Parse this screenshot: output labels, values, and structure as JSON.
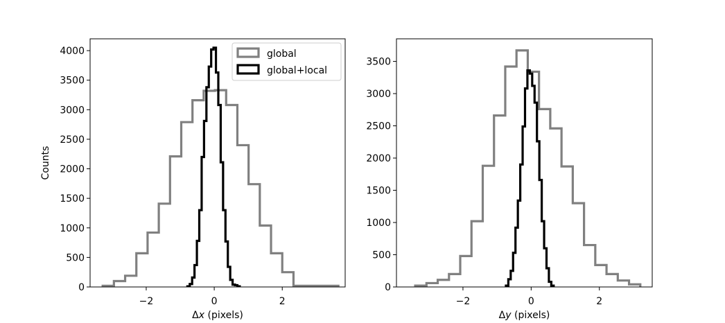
{
  "chart_data": [
    {
      "type": "histogram",
      "xlabel_prefix": "Δ",
      "xlabel_var": "x",
      "xlabel_suffix": " (pixels)",
      "ylabel": "Counts",
      "xlim": [
        -3.65,
        3.85
      ],
      "ylim": [
        0,
        4200
      ],
      "xticks": [
        -2,
        0,
        2
      ],
      "xtick_labels": [
        "−2",
        "0",
        "2"
      ],
      "yticks": [
        0,
        500,
        1000,
        1500,
        2000,
        2500,
        3000,
        3500,
        4000
      ],
      "ytick_labels": [
        "0",
        "500",
        "1000",
        "1500",
        "2000",
        "2500",
        "3000",
        "3500",
        "4000"
      ],
      "legend": {
        "position": "upper-right",
        "entries": [
          "global",
          "global+local"
        ]
      },
      "series": [
        {
          "name": "global",
          "color": "#808080",
          "bin_edges": [
            -3.28,
            -2.95,
            -2.62,
            -2.29,
            -1.96,
            -1.63,
            -1.3,
            -0.97,
            -0.64,
            -0.31,
            0.02,
            0.35,
            0.68,
            1.01,
            1.34,
            1.67,
            2.0,
            2.33,
            2.66,
            2.99,
            3.32,
            3.65
          ],
          "counts": [
            20,
            100,
            190,
            570,
            920,
            1410,
            2210,
            2790,
            3160,
            3320,
            3330,
            3080,
            2400,
            1740,
            1040,
            570,
            250,
            20,
            20,
            20,
            20
          ]
        },
        {
          "name": "global+local",
          "color": "#000000",
          "bin_edges": [
            -0.79,
            -0.72,
            -0.65,
            -0.58,
            -0.51,
            -0.44,
            -0.37,
            -0.3,
            -0.23,
            -0.16,
            -0.09,
            -0.02,
            0.05,
            0.12,
            0.19,
            0.26,
            0.33,
            0.4,
            0.47,
            0.54,
            0.61,
            0.68,
            0.75
          ],
          "counts": [
            10,
            50,
            160,
            370,
            780,
            1300,
            2200,
            2810,
            3380,
            3730,
            4020,
            4050,
            3630,
            3080,
            2110,
            1300,
            770,
            340,
            120,
            40,
            30,
            10
          ]
        }
      ]
    },
    {
      "type": "histogram",
      "xlabel_prefix": "Δ",
      "xlabel_var": "y",
      "xlabel_suffix": " (pixels)",
      "ylabel": "",
      "xlim": [
        -3.95,
        3.55
      ],
      "ylim": [
        0,
        3850
      ],
      "xticks": [
        -2,
        0,
        2
      ],
      "xtick_labels": [
        "−2",
        "0",
        "2"
      ],
      "yticks": [
        0,
        500,
        1000,
        1500,
        2000,
        2500,
        3000,
        3500
      ],
      "ytick_labels": [
        "0",
        "500",
        "1000",
        "1500",
        "2000",
        "2500",
        "3000",
        "3500"
      ],
      "series": [
        {
          "name": "global",
          "color": "#808080",
          "bin_edges": [
            -3.4,
            -3.07,
            -2.74,
            -2.41,
            -2.08,
            -1.75,
            -1.42,
            -1.09,
            -0.76,
            -0.43,
            -0.1,
            0.23,
            0.56,
            0.89,
            1.22,
            1.55,
            1.88,
            2.21,
            2.54,
            2.87,
            3.2
          ],
          "counts": [
            20,
            60,
            110,
            200,
            480,
            1020,
            1880,
            2660,
            3420,
            3670,
            3340,
            2760,
            2460,
            1870,
            1300,
            650,
            340,
            200,
            100,
            40
          ]
        },
        {
          "name": "global+local",
          "color": "#000000",
          "bin_edges": [
            -0.74,
            -0.67,
            -0.6,
            -0.53,
            -0.46,
            -0.39,
            -0.32,
            -0.25,
            -0.18,
            -0.11,
            -0.04,
            0.03,
            0.1,
            0.17,
            0.24,
            0.31,
            0.38,
            0.45,
            0.52,
            0.59,
            0.66
          ],
          "counts": [
            20,
            120,
            250,
            530,
            920,
            1340,
            1900,
            2490,
            3080,
            3360,
            3310,
            3120,
            2860,
            2260,
            1660,
            1020,
            600,
            290,
            80,
            20
          ]
        }
      ]
    }
  ]
}
